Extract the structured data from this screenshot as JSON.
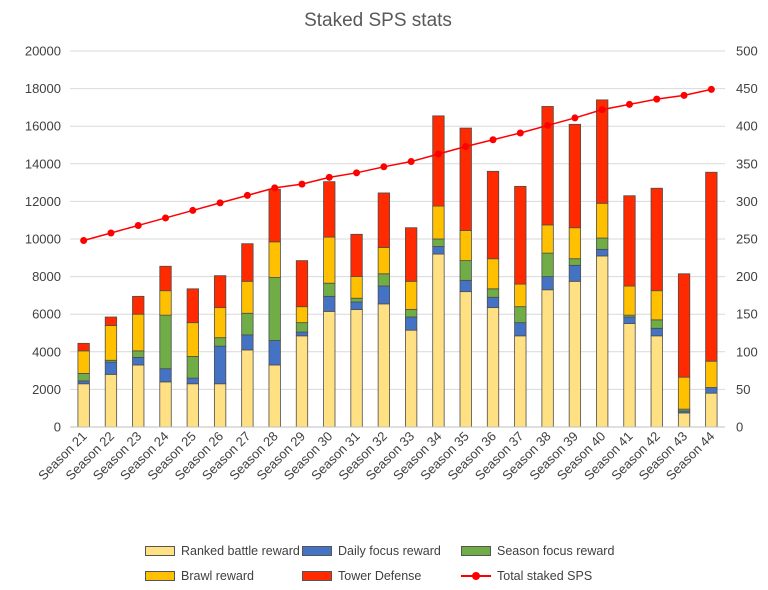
{
  "chart_data": {
    "type": "bar",
    "stacked": true,
    "title": "Staked SPS stats",
    "categories": [
      "Season 21",
      "Season 22",
      "Season 23",
      "Season 24",
      "Season 25",
      "Season 26",
      "Season 27",
      "Season 28",
      "Season 29",
      "Season 30",
      "Season 31",
      "Season 32",
      "Season 33",
      "Season 34",
      "Season 35",
      "Season 36",
      "Season 37",
      "Season 38",
      "Season 39",
      "Season 40",
      "Season 41",
      "Season 42",
      "Season 43",
      "Season 44"
    ],
    "ylim": [
      0,
      20000
    ],
    "yticks": [
      "0",
      "2000",
      "4000",
      "6000",
      "8000",
      "10000",
      "12000",
      "14000",
      "16000",
      "18000",
      "20000"
    ],
    "y2lim": [
      0,
      500
    ],
    "y2ticks": [
      "0",
      "50",
      "100",
      "150",
      "200",
      "250",
      "300",
      "350",
      "400",
      "450",
      "500"
    ],
    "grid": true,
    "legend_position": "bottom",
    "series": [
      {
        "name": "Ranked battle reward",
        "color": "#ffe082",
        "values": [
          2300,
          2800,
          3300,
          2400,
          2300,
          2300,
          4100,
          3300,
          4850,
          6150,
          6250,
          6550,
          5150,
          9200,
          7200,
          6350,
          4850,
          7300,
          7750,
          9100,
          5500,
          4850,
          750,
          1800
        ]
      },
      {
        "name": "Daily focus reward",
        "color": "#4472c4",
        "values": [
          150,
          650,
          400,
          700,
          300,
          2000,
          800,
          1300,
          200,
          800,
          400,
          950,
          700,
          400,
          600,
          550,
          700,
          700,
          850,
          350,
          350,
          400,
          100,
          300
        ]
      },
      {
        "name": "Season focus reward",
        "color": "#70ad47",
        "values": [
          400,
          100,
          350,
          2850,
          1150,
          450,
          1150,
          3350,
          500,
          700,
          200,
          650,
          400,
          400,
          1050,
          450,
          850,
          1250,
          350,
          600,
          100,
          450,
          100,
          0
        ]
      },
      {
        "name": "Brawl reward",
        "color": "#ffc000",
        "values": [
          1200,
          1850,
          1950,
          1300,
          1800,
          1600,
          1700,
          1900,
          850,
          2450,
          1150,
          1400,
          1500,
          1750,
          1600,
          1600,
          1200,
          1500,
          1650,
          1850,
          1550,
          1550,
          1700,
          1400
        ]
      },
      {
        "name": "Tower Defense",
        "color": "#ff2a00",
        "values": [
          400,
          450,
          950,
          1300,
          1800,
          1700,
          2000,
          2800,
          2450,
          2950,
          2250,
          2900,
          2850,
          4800,
          5450,
          4650,
          5200,
          6300,
          5500,
          5500,
          4800,
          5450,
          5500,
          10050
        ]
      }
    ],
    "line_series": {
      "name": "Total staked SPS",
      "color": "#ff0000",
      "axis": "secondary",
      "values": [
        248,
        258,
        268,
        278,
        288,
        298,
        308,
        318,
        323,
        332,
        338,
        346,
        353,
        363,
        373,
        382,
        391,
        401,
        411,
        422,
        429,
        436,
        441,
        449
      ]
    }
  }
}
